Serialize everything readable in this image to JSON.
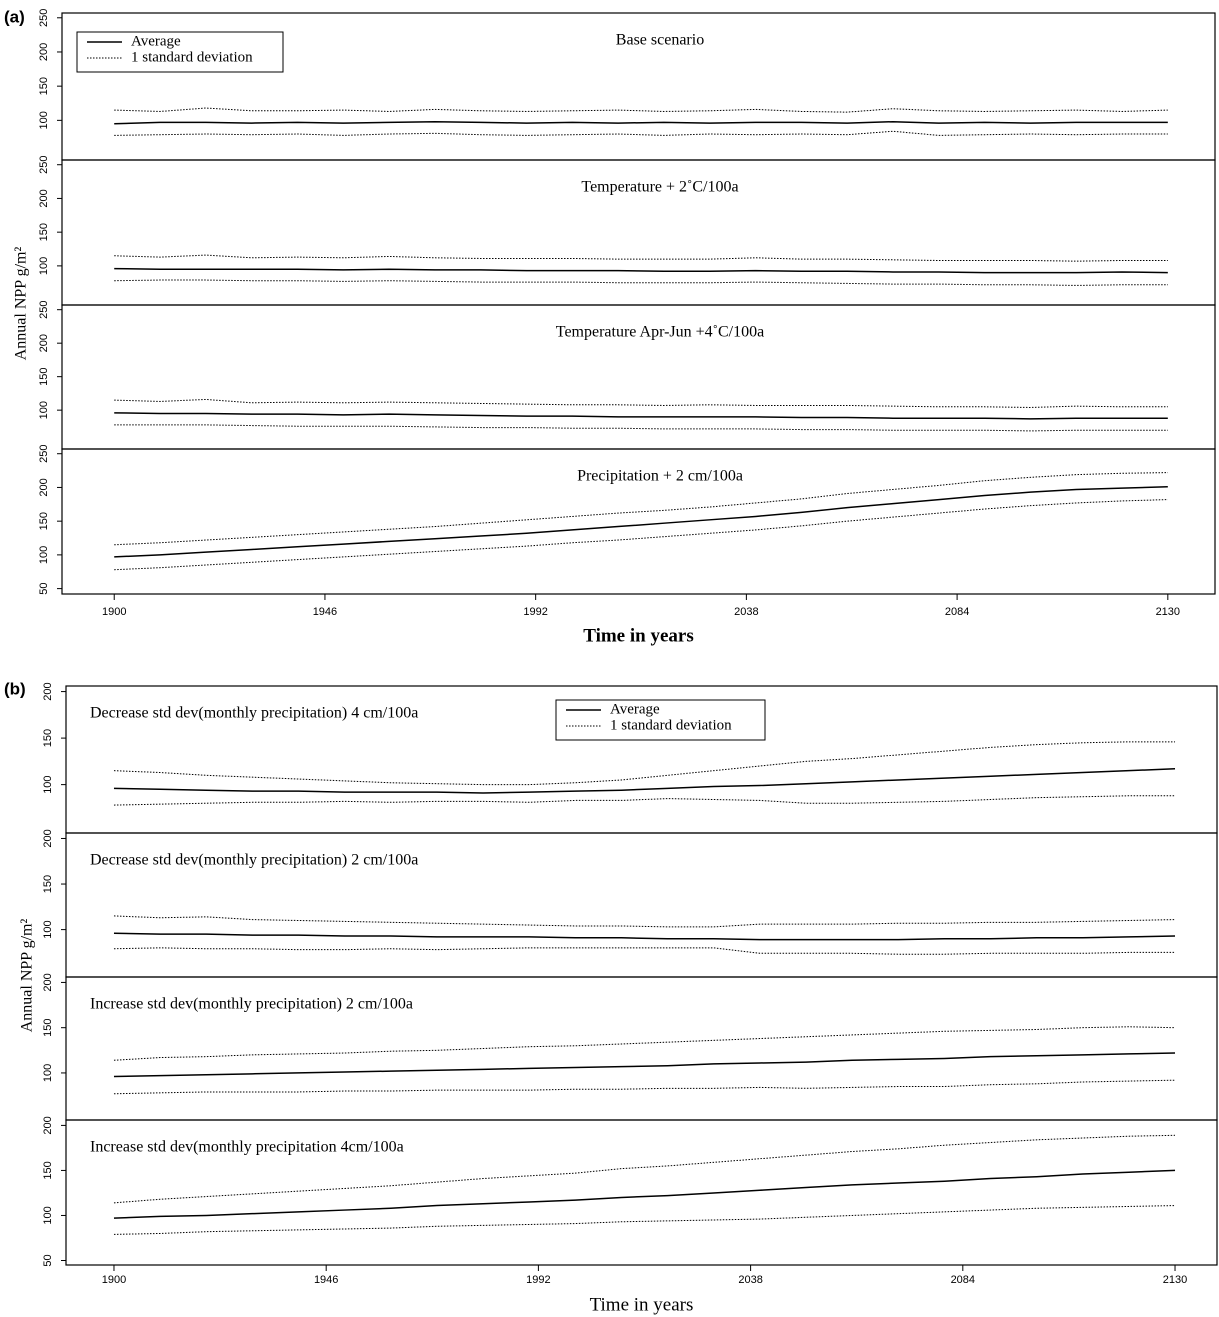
{
  "chart_data": [
    {
      "type": "line",
      "label": "(a)",
      "ylabel": "Annual NPP g/m²",
      "xlabel": "Time in years",
      "x": [
        1900,
        1910,
        1920,
        1930,
        1940,
        1950,
        1960,
        1970,
        1980,
        1990,
        2000,
        2010,
        2020,
        2030,
        2040,
        2050,
        2060,
        2070,
        2080,
        2090,
        2100,
        2110,
        2120,
        2130
      ],
      "xlim": [
        1888.6,
        2140.3
      ],
      "xticks": [
        1900,
        1946,
        1992,
        2038,
        2084,
        2130
      ],
      "panels": [
        {
          "title": "Base scenario",
          "ylim": [
            42,
            257
          ],
          "yticks": [
            100,
            150,
            200,
            250
          ],
          "legend": "upper left",
          "series": [
            {
              "name": "Average",
              "color": "#000000",
              "style": "solid",
              "values": [
                95,
                97,
                97,
                96,
                97,
                96,
                97,
                98,
                97,
                96,
                97,
                96,
                97,
                96,
                97,
                97,
                96,
                98,
                96,
                97,
                96,
                97,
                97,
                97
              ]
            },
            {
              "name": "1 standard deviation",
              "color": "#000000",
              "style": "dotted",
              "values": [
                115,
                113,
                118,
                114,
                114,
                115,
                113,
                116,
                114,
                113,
                114,
                115,
                113,
                114,
                116,
                113,
                112,
                117,
                114,
                113,
                114,
                115,
                113,
                115
              ]
            },
            {
              "name": "1 standard deviation",
              "color": "#000000",
              "style": "dotted",
              "values": [
                78,
                79,
                80,
                79,
                80,
                78,
                80,
                81,
                79,
                78,
                79,
                80,
                78,
                80,
                79,
                80,
                79,
                84,
                78,
                79,
                80,
                79,
                80,
                80
              ]
            }
          ]
        },
        {
          "title": "Temperature + 2˚C/100a",
          "ylim": [
            42,
            257
          ],
          "yticks": [
            100,
            150,
            200,
            250
          ],
          "series": [
            {
              "name": "Average",
              "color": "#000000",
              "style": "solid",
              "values": [
                96,
                95,
                95,
                95,
                95,
                94,
                95,
                94,
                94,
                93,
                93,
                93,
                92,
                92,
                93,
                92,
                92,
                91,
                91,
                90,
                90,
                90,
                91,
                90
              ]
            },
            {
              "name": "1 standard deviation",
              "color": "#000000",
              "style": "dotted",
              "values": [
                115,
                113,
                116,
                112,
                113,
                112,
                114,
                112,
                111,
                111,
                111,
                110,
                110,
                110,
                112,
                110,
                110,
                109,
                108,
                108,
                108,
                107,
                108,
                108
              ]
            },
            {
              "name": "1 standard deviation",
              "color": "#000000",
              "style": "dotted",
              "values": [
                78,
                79,
                79,
                78,
                78,
                77,
                78,
                77,
                76,
                76,
                76,
                75,
                75,
                75,
                76,
                75,
                74,
                73,
                73,
                72,
                72,
                71,
                72,
                72
              ]
            }
          ]
        },
        {
          "title": "Temperature Apr-Jun +4˚C/100a",
          "ylim": [
            42,
            257
          ],
          "yticks": [
            100,
            150,
            200,
            250
          ],
          "series": [
            {
              "name": "Average",
              "color": "#000000",
              "style": "solid",
              "values": [
                96,
                95,
                95,
                94,
                94,
                93,
                94,
                93,
                92,
                91,
                91,
                90,
                90,
                90,
                90,
                89,
                89,
                88,
                88,
                88,
                87,
                88,
                88,
                88
              ]
            },
            {
              "name": "1 standard deviation",
              "color": "#000000",
              "style": "dotted",
              "values": [
                115,
                113,
                116,
                111,
                112,
                111,
                112,
                111,
                110,
                109,
                108,
                108,
                107,
                108,
                107,
                107,
                107,
                106,
                105,
                105,
                104,
                106,
                105,
                105
              ]
            },
            {
              "name": "1 standard deviation",
              "color": "#000000",
              "style": "dotted",
              "values": [
                78,
                78,
                78,
                77,
                76,
                76,
                76,
                75,
                74,
                74,
                73,
                73,
                72,
                72,
                72,
                71,
                71,
                70,
                70,
                70,
                69,
                70,
                70,
                70
              ]
            }
          ]
        },
        {
          "title": "Precipitation + 2 cm/100a",
          "ylim": [
            42,
            257
          ],
          "yticks": [
            50,
            100,
            150,
            200,
            250
          ],
          "series": [
            {
              "name": "Average",
              "color": "#000000",
              "style": "solid",
              "values": [
                97,
                100,
                104,
                108,
                112,
                116,
                120,
                124,
                128,
                132,
                137,
                142,
                147,
                152,
                157,
                163,
                170,
                176,
                182,
                188,
                193,
                197,
                199,
                201
              ]
            },
            {
              "name": "1 standard deviation",
              "color": "#000000",
              "style": "dotted",
              "values": [
                115,
                118,
                122,
                126,
                130,
                134,
                138,
                142,
                147,
                152,
                157,
                162,
                166,
                171,
                177,
                183,
                191,
                197,
                203,
                210,
                215,
                219,
                221,
                222
              ]
            },
            {
              "name": "1 standard deviation",
              "color": "#000000",
              "style": "dotted",
              "values": [
                78,
                81,
                85,
                89,
                93,
                97,
                101,
                105,
                109,
                113,
                118,
                122,
                127,
                132,
                137,
                143,
                150,
                156,
                162,
                168,
                173,
                177,
                180,
                182
              ]
            }
          ]
        }
      ]
    },
    {
      "type": "line",
      "label": "(b)",
      "ylabel": "Annual NPP g/m²",
      "xlabel": "Time in years",
      "x": [
        1900,
        1910,
        1920,
        1930,
        1940,
        1950,
        1960,
        1970,
        1980,
        1990,
        2000,
        2010,
        2020,
        2030,
        2040,
        2050,
        2060,
        2070,
        2080,
        2090,
        2100,
        2110,
        2120,
        2130
      ],
      "xlim": [
        1889.6,
        2139.1
      ],
      "xticks": [
        1900,
        1946,
        1992,
        2038,
        2084,
        2130
      ],
      "panels": [
        {
          "title": "Decrease std dev(monthly precipitation) 4 cm/100a",
          "ylim": [
            48,
            206
          ],
          "yticks": [
            100,
            150,
            200
          ],
          "legend": "upper center",
          "series": [
            {
              "name": "Average",
              "color": "#000000",
              "style": "solid",
              "values": [
                96,
                95,
                94,
                93,
                93,
                92,
                92,
                92,
                91,
                92,
                93,
                94,
                96,
                98,
                99,
                101,
                103,
                105,
                107,
                109,
                111,
                113,
                115,
                117
              ]
            },
            {
              "name": "1 standard deviation",
              "color": "#000000",
              "style": "dotted",
              "values": [
                115,
                113,
                110,
                108,
                106,
                104,
                102,
                101,
                100,
                100,
                102,
                105,
                110,
                115,
                120,
                125,
                128,
                132,
                136,
                140,
                143,
                145,
                146,
                146
              ]
            },
            {
              "name": "1 standard deviation",
              "color": "#000000",
              "style": "dotted",
              "values": [
                78,
                79,
                80,
                81,
                81,
                82,
                81,
                82,
                82,
                81,
                83,
                83,
                85,
                84,
                83,
                80,
                80,
                81,
                82,
                84,
                86,
                87,
                88,
                88
              ]
            }
          ]
        },
        {
          "title": "Decrease std dev(monthly precipitation) 2 cm/100a",
          "ylim": [
            48,
            206
          ],
          "yticks": [
            100,
            150,
            200
          ],
          "series": [
            {
              "name": "Average",
              "color": "#000000",
              "style": "solid",
              "values": [
                96,
                95,
                95,
                94,
                94,
                93,
                93,
                92,
                92,
                92,
                91,
                91,
                90,
                90,
                89,
                89,
                89,
                89,
                90,
                90,
                91,
                91,
                92,
                93
              ]
            },
            {
              "name": "1 standard deviation",
              "color": "#000000",
              "style": "dotted",
              "values": [
                115,
                113,
                114,
                111,
                110,
                109,
                108,
                107,
                106,
                105,
                104,
                104,
                103,
                103,
                106,
                106,
                106,
                107,
                107,
                108,
                108,
                109,
                110,
                111
              ]
            },
            {
              "name": "1 standard deviation",
              "color": "#000000",
              "style": "dotted",
              "values": [
                79,
                80,
                79,
                79,
                78,
                78,
                79,
                78,
                79,
                80,
                80,
                80,
                80,
                80,
                74,
                74,
                74,
                73,
                73,
                74,
                74,
                74,
                75,
                75
              ]
            }
          ]
        },
        {
          "title": "Increase std dev(monthly precipitation) 2 cm/100a",
          "ylim": [
            48,
            206
          ],
          "yticks": [
            100,
            150,
            200
          ],
          "series": [
            {
              "name": "Average",
              "color": "#000000",
              "style": "solid",
              "values": [
                96,
                97,
                98,
                99,
                100,
                101,
                102,
                103,
                104,
                105,
                106,
                107,
                108,
                110,
                111,
                112,
                114,
                115,
                116,
                118,
                119,
                120,
                121,
                122
              ]
            },
            {
              "name": "1 standard deviation",
              "color": "#000000",
              "style": "dotted",
              "values": [
                114,
                117,
                118,
                120,
                121,
                122,
                124,
                125,
                127,
                129,
                130,
                132,
                134,
                136,
                138,
                140,
                142,
                144,
                146,
                147,
                148,
                150,
                151,
                150
              ]
            },
            {
              "name": "1 standard deviation",
              "color": "#000000",
              "style": "dotted",
              "values": [
                77,
                78,
                79,
                79,
                79,
                80,
                80,
                81,
                81,
                81,
                82,
                82,
                83,
                83,
                84,
                83,
                84,
                85,
                85,
                87,
                88,
                90,
                91,
                92
              ]
            }
          ]
        },
        {
          "title": "Increase std dev(monthly precipitation 4cm/100a",
          "ylim": [
            45,
            206
          ],
          "yticks": [
            50,
            100,
            150,
            200
          ],
          "series": [
            {
              "name": "Average",
              "color": "#000000",
              "style": "solid",
              "values": [
                97,
                99,
                100,
                102,
                104,
                106,
                108,
                111,
                113,
                115,
                117,
                120,
                122,
                125,
                128,
                131,
                134,
                136,
                138,
                141,
                143,
                146,
                148,
                150
              ]
            },
            {
              "name": "1 standard deviation",
              "color": "#000000",
              "style": "dotted",
              "values": [
                114,
                118,
                121,
                124,
                127,
                130,
                133,
                137,
                141,
                144,
                147,
                152,
                155,
                159,
                163,
                167,
                171,
                174,
                178,
                181,
                184,
                186,
                188,
                189
              ]
            },
            {
              "name": "1 standard deviation",
              "color": "#000000",
              "style": "dotted",
              "values": [
                79,
                80,
                82,
                83,
                84,
                85,
                86,
                88,
                89,
                90,
                91,
                93,
                94,
                95,
                96,
                98,
                100,
                102,
                104,
                106,
                108,
                109,
                110,
                111
              ]
            }
          ]
        }
      ]
    }
  ]
}
